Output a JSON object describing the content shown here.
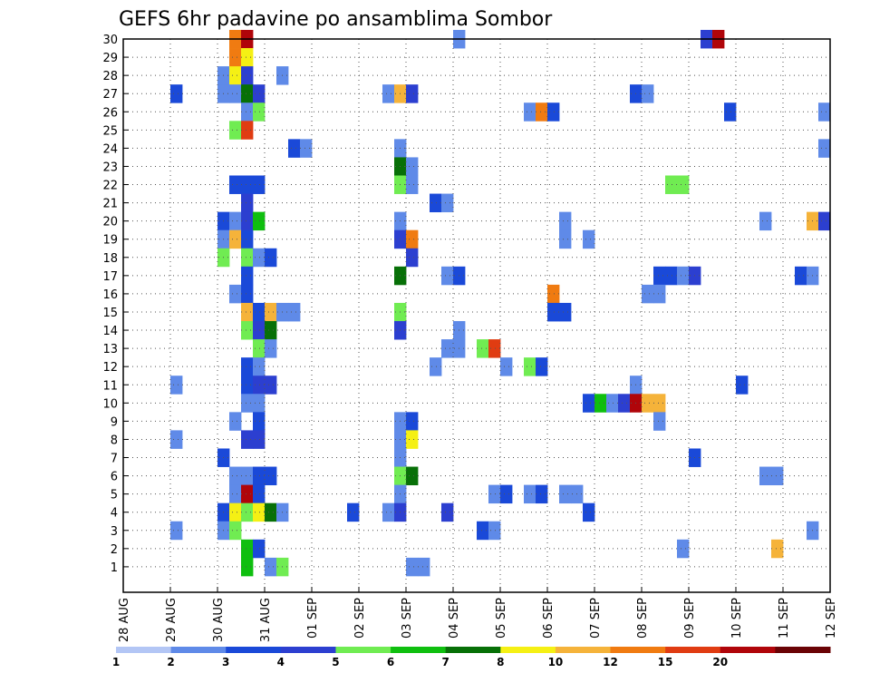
{
  "chart_data": {
    "type": "heatmap",
    "title": "GEFS 6hr padavine po ansamblima Sombor",
    "xlabel": "",
    "ylabel": "",
    "x_tick_labels": [
      "28 AUG",
      "29 AUG",
      "30 AUG",
      "31 AUG",
      "01 SEP",
      "02 SEP",
      "03 SEP",
      "04 SEP",
      "05 SEP",
      "06 SEP",
      "07 SEP",
      "08 SEP",
      "09 SEP",
      "10 SEP",
      "11 SEP",
      "12 SEP"
    ],
    "y_tick_labels": [
      "1",
      "2",
      "3",
      "4",
      "5",
      "6",
      "7",
      "8",
      "9",
      "10",
      "11",
      "12",
      "13",
      "14",
      "15",
      "16",
      "17",
      "18",
      "19",
      "20",
      "21",
      "22",
      "23",
      "24",
      "25",
      "26",
      "27",
      "28",
      "29",
      "30"
    ],
    "xlim": [
      0,
      60
    ],
    "ylim": [
      0,
      30
    ],
    "grid": true,
    "colorbar": {
      "labels": [
        "1",
        "2",
        "3",
        "4",
        "5",
        "6",
        "7",
        "8",
        "10",
        "12",
        "15",
        "20"
      ],
      "colors": [
        "#b3c6f5",
        "#5f8ae8",
        "#1a49d8",
        "#2c3fd0",
        "#70ec52",
        "#0fbf0f",
        "#077007",
        "#f5f014",
        "#f5b33a",
        "#f07b11",
        "#e03c12",
        "#b0050a",
        "#6a0305"
      ]
    },
    "cells_note": "",
    "cells": [
      [
        9,
        30,
        9
      ],
      [
        10,
        30,
        11
      ],
      [
        28,
        30,
        1
      ],
      [
        49,
        30,
        3
      ],
      [
        50,
        30,
        11
      ],
      [
        9,
        29,
        9
      ],
      [
        10,
        29,
        7
      ],
      [
        8,
        28,
        1
      ],
      [
        9,
        28,
        7
      ],
      [
        10,
        28,
        3
      ],
      [
        13,
        28,
        1
      ],
      [
        4,
        27,
        2
      ],
      [
        8,
        27,
        1
      ],
      [
        9,
        27,
        1
      ],
      [
        10,
        27,
        6
      ],
      [
        11,
        27,
        3
      ],
      [
        22,
        27,
        1
      ],
      [
        23,
        27,
        8
      ],
      [
        24,
        27,
        3
      ],
      [
        43,
        27,
        2
      ],
      [
        44,
        27,
        1
      ],
      [
        10,
        26,
        1
      ],
      [
        11,
        26,
        4
      ],
      [
        34,
        26,
        1
      ],
      [
        35,
        26,
        9
      ],
      [
        36,
        26,
        2
      ],
      [
        51,
        26,
        2
      ],
      [
        59,
        26,
        1
      ],
      [
        9,
        25,
        4
      ],
      [
        10,
        25,
        10
      ],
      [
        14,
        24,
        2
      ],
      [
        15,
        24,
        1
      ],
      [
        23,
        24,
        1
      ],
      [
        59,
        24,
        1
      ],
      [
        23,
        23,
        6
      ],
      [
        24,
        23,
        1
      ],
      [
        9,
        22,
        2
      ],
      [
        10,
        22,
        2
      ],
      [
        11,
        22,
        2
      ],
      [
        23,
        22,
        4
      ],
      [
        24,
        22,
        1
      ],
      [
        46,
        22,
        4
      ],
      [
        47,
        22,
        4
      ],
      [
        10,
        21,
        3
      ],
      [
        26,
        21,
        2
      ],
      [
        27,
        21,
        1
      ],
      [
        8,
        20,
        2
      ],
      [
        9,
        20,
        1
      ],
      [
        10,
        20,
        3
      ],
      [
        11,
        20,
        5
      ],
      [
        23,
        20,
        1
      ],
      [
        37,
        20,
        1
      ],
      [
        54,
        20,
        1
      ],
      [
        58,
        20,
        8
      ],
      [
        59,
        20,
        3
      ],
      [
        8,
        19,
        1
      ],
      [
        9,
        19,
        8
      ],
      [
        10,
        19,
        2
      ],
      [
        23,
        19,
        3
      ],
      [
        24,
        19,
        9
      ],
      [
        37,
        19,
        1
      ],
      [
        39,
        19,
        1
      ],
      [
        8,
        18,
        4
      ],
      [
        10,
        18,
        4
      ],
      [
        11,
        18,
        1
      ],
      [
        12,
        18,
        2
      ],
      [
        24,
        18,
        3
      ],
      [
        10,
        17,
        2
      ],
      [
        23,
        17,
        6
      ],
      [
        27,
        17,
        1
      ],
      [
        28,
        17,
        2
      ],
      [
        45,
        17,
        2
      ],
      [
        46,
        17,
        2
      ],
      [
        47,
        17,
        1
      ],
      [
        48,
        17,
        3
      ],
      [
        57,
        17,
        2
      ],
      [
        58,
        17,
        1
      ],
      [
        9,
        16,
        1
      ],
      [
        10,
        16,
        2
      ],
      [
        36,
        16,
        9
      ],
      [
        44,
        16,
        1
      ],
      [
        45,
        16,
        1
      ],
      [
        10,
        15,
        8
      ],
      [
        11,
        15,
        2
      ],
      [
        12,
        15,
        8
      ],
      [
        13,
        15,
        1
      ],
      [
        14,
        15,
        1
      ],
      [
        23,
        15,
        4
      ],
      [
        36,
        15,
        2
      ],
      [
        37,
        15,
        2
      ],
      [
        10,
        14,
        4
      ],
      [
        11,
        14,
        3
      ],
      [
        12,
        14,
        6
      ],
      [
        23,
        14,
        3
      ],
      [
        28,
        14,
        1
      ],
      [
        11,
        13,
        4
      ],
      [
        12,
        13,
        1
      ],
      [
        27,
        13,
        1
      ],
      [
        28,
        13,
        1
      ],
      [
        30,
        13,
        4
      ],
      [
        31,
        13,
        10
      ],
      [
        10,
        12,
        2
      ],
      [
        11,
        12,
        1
      ],
      [
        26,
        12,
        1
      ],
      [
        32,
        12,
        1
      ],
      [
        34,
        12,
        4
      ],
      [
        35,
        12,
        2
      ],
      [
        4,
        11,
        1
      ],
      [
        10,
        11,
        2
      ],
      [
        11,
        11,
        3
      ],
      [
        12,
        11,
        3
      ],
      [
        43,
        11,
        1
      ],
      [
        52,
        11,
        2
      ],
      [
        10,
        10,
        1
      ],
      [
        11,
        10,
        1
      ],
      [
        39,
        10,
        2
      ],
      [
        40,
        10,
        5
      ],
      [
        41,
        10,
        1
      ],
      [
        42,
        10,
        3
      ],
      [
        43,
        10,
        11
      ],
      [
        44,
        10,
        8
      ],
      [
        45,
        10,
        8
      ],
      [
        9,
        9,
        1
      ],
      [
        11,
        9,
        2
      ],
      [
        23,
        9,
        1
      ],
      [
        24,
        9,
        2
      ],
      [
        45,
        9,
        1
      ],
      [
        4,
        8,
        1
      ],
      [
        10,
        8,
        3
      ],
      [
        11,
        8,
        3
      ],
      [
        23,
        8,
        1
      ],
      [
        24,
        8,
        7
      ],
      [
        8,
        7,
        2
      ],
      [
        23,
        7,
        1
      ],
      [
        48,
        7,
        2
      ],
      [
        9,
        6,
        1
      ],
      [
        10,
        6,
        1
      ],
      [
        11,
        6,
        2
      ],
      [
        12,
        6,
        2
      ],
      [
        23,
        6,
        4
      ],
      [
        24,
        6,
        6
      ],
      [
        54,
        6,
        1
      ],
      [
        55,
        6,
        1
      ],
      [
        9,
        5,
        1
      ],
      [
        10,
        5,
        11
      ],
      [
        11,
        5,
        2
      ],
      [
        23,
        5,
        1
      ],
      [
        31,
        5,
        1
      ],
      [
        32,
        5,
        2
      ],
      [
        34,
        5,
        1
      ],
      [
        35,
        5,
        2
      ],
      [
        37,
        5,
        1
      ],
      [
        38,
        5,
        1
      ],
      [
        8,
        4,
        2
      ],
      [
        9,
        4,
        7
      ],
      [
        10,
        4,
        4
      ],
      [
        11,
        4,
        7
      ],
      [
        12,
        4,
        6
      ],
      [
        13,
        4,
        1
      ],
      [
        19,
        4,
        2
      ],
      [
        22,
        4,
        1
      ],
      [
        23,
        4,
        3
      ],
      [
        27,
        4,
        3
      ],
      [
        39,
        4,
        2
      ],
      [
        4,
        3,
        1
      ],
      [
        8,
        3,
        1
      ],
      [
        9,
        3,
        4
      ],
      [
        30,
        3,
        2
      ],
      [
        31,
        3,
        1
      ],
      [
        58,
        3,
        1
      ],
      [
        10,
        2,
        5
      ],
      [
        11,
        2,
        2
      ],
      [
        47,
        2,
        1
      ],
      [
        55,
        2,
        8
      ],
      [
        10,
        1,
        5
      ],
      [
        12,
        1,
        1
      ],
      [
        13,
        1,
        4
      ],
      [
        24,
        1,
        1
      ],
      [
        25,
        1,
        1
      ]
    ]
  }
}
